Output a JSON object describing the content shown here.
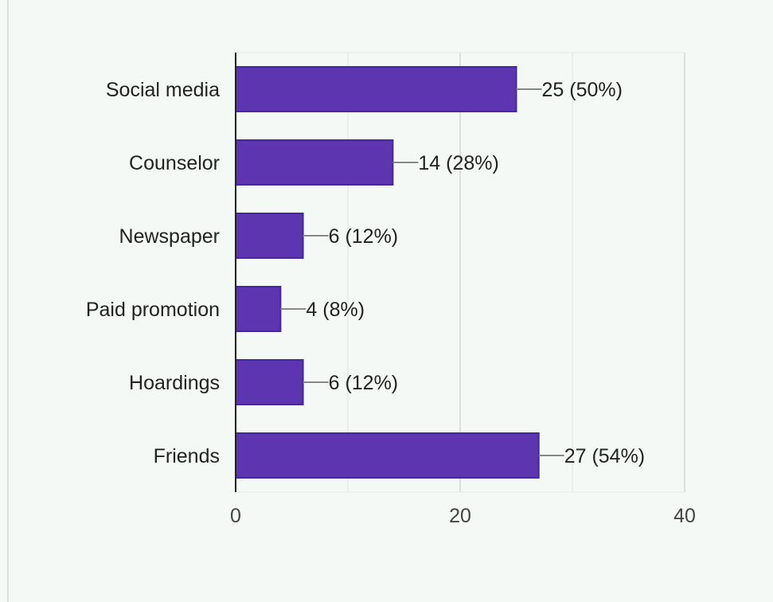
{
  "chart_data": {
    "type": "bar",
    "orientation": "horizontal",
    "categories": [
      "Social media",
      "Counselor",
      "Newspaper",
      "Paid promotion",
      "Hoardings",
      "Friends"
    ],
    "values": [
      25,
      14,
      6,
      4,
      6,
      27
    ],
    "value_labels": [
      "25 (50%)",
      "14 (28%)",
      "6 (12%)",
      "4 (8%)",
      "6 (12%)",
      "27 (54%)"
    ],
    "xlim": [
      0,
      40
    ],
    "x_ticks": [
      0,
      20,
      40
    ],
    "x_tick_labels": [
      "0",
      "20",
      "40"
    ],
    "minor_gridlines": [
      10,
      30
    ],
    "grid": true,
    "bar_color": "#5e35b1",
    "bar_edge_color": "#4527a0",
    "title": "",
    "xlabel": "",
    "ylabel": ""
  }
}
